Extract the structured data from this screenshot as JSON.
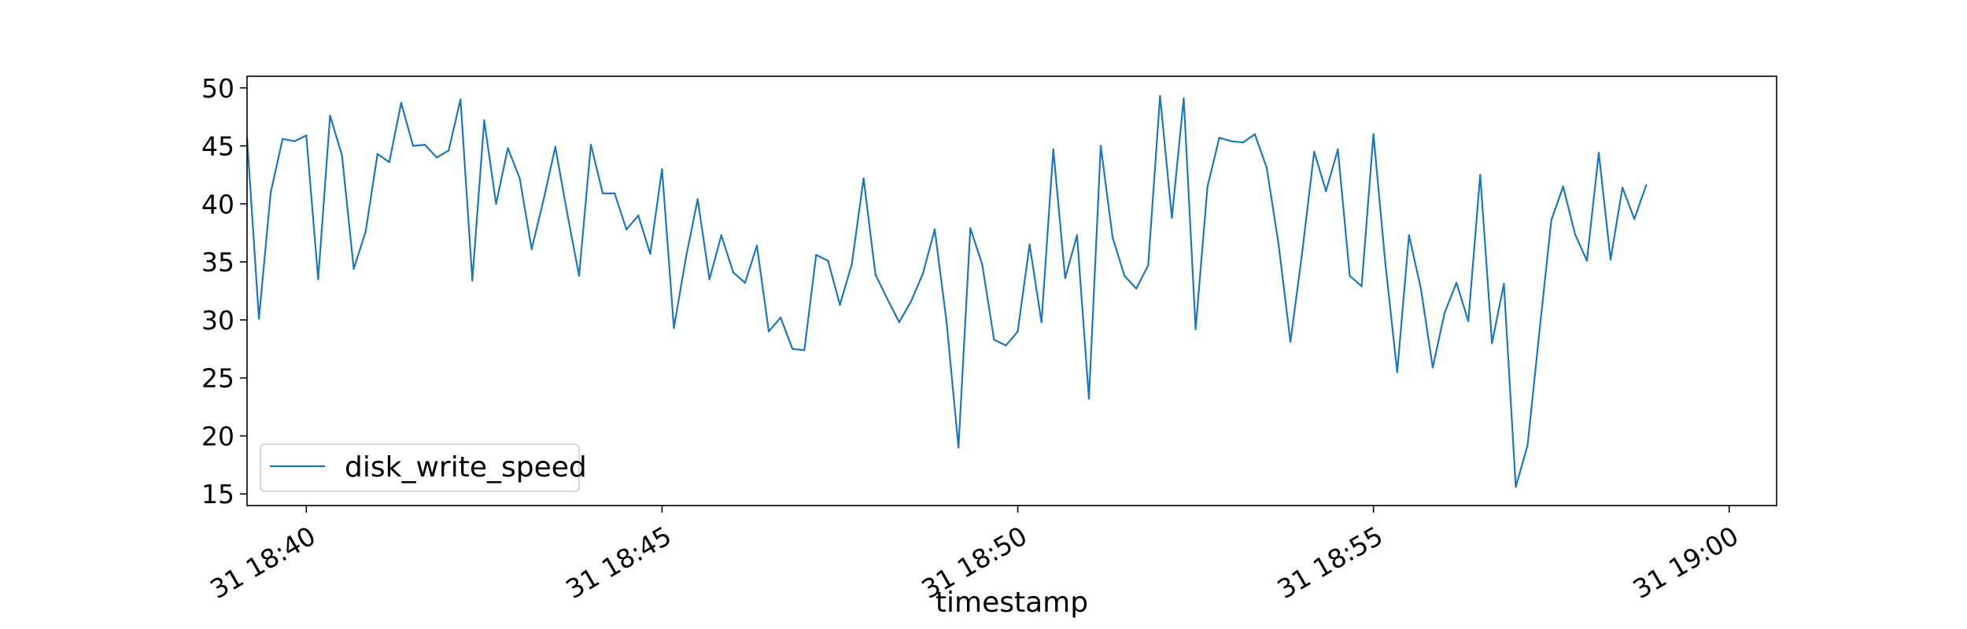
{
  "chart_data": {
    "type": "line",
    "title": "",
    "xlabel": "timestamp",
    "ylabel": "",
    "x_start": "2023-12-31 18:39:10",
    "x_step_seconds": 10,
    "xlim": [
      "2023-12-31 18:39:10",
      "2023-12-31 19:00:40"
    ],
    "ylim": [
      14,
      51
    ],
    "x_ticks": [
      {
        "t": "2023-12-31 18:40:00",
        "label": "31 18:40"
      },
      {
        "t": "2023-12-31 18:45:00",
        "label": "31 18:45"
      },
      {
        "t": "2023-12-31 18:50:00",
        "label": "31 18:50"
      },
      {
        "t": "2023-12-31 18:55:00",
        "label": "31 18:55"
      },
      {
        "t": "2023-12-31 19:00:00",
        "label": "31 19:00"
      }
    ],
    "y_ticks": [
      15,
      20,
      25,
      30,
      35,
      40,
      45,
      50
    ],
    "grid": false,
    "legend_position": "lower-left",
    "series": [
      {
        "name": "disk_write_speed",
        "color": "#1f77b4",
        "values": [
          45.7,
          30.1,
          41.0,
          45.6,
          45.4,
          45.9,
          33.5,
          47.6,
          44.2,
          34.4,
          37.6,
          44.3,
          43.6,
          48.7,
          45.0,
          45.1,
          44.0,
          44.6,
          49.0,
          33.4,
          47.2,
          40.0,
          44.8,
          42.2,
          36.1,
          40.3,
          44.9,
          39.2,
          33.8,
          45.1,
          40.9,
          40.9,
          37.8,
          39.0,
          35.7,
          43.0,
          29.3,
          35.3,
          40.4,
          33.5,
          37.3,
          34.1,
          33.2,
          36.4,
          29.0,
          30.2,
          27.5,
          27.4,
          35.6,
          35.1,
          31.3,
          34.8,
          42.2,
          33.9,
          31.8,
          29.8,
          31.6,
          34.0,
          37.8,
          29.8,
          19.0,
          37.9,
          34.8,
          28.3,
          27.8,
          29.0,
          36.5,
          29.8,
          44.7,
          33.6,
          37.3,
          23.2,
          45.0,
          37.1,
          33.8,
          32.7,
          34.7,
          49.3,
          38.8,
          49.1,
          29.2,
          41.5,
          45.7,
          45.4,
          45.3,
          46.0,
          43.1,
          36.5,
          28.1,
          35.9,
          44.5,
          41.1,
          44.7,
          33.8,
          32.9,
          46.0,
          34.9,
          25.5,
          37.3,
          32.7,
          25.9,
          30.6,
          33.2,
          29.9,
          42.5,
          28.0,
          33.1,
          15.6,
          19.2,
          29.0,
          38.6,
          41.5,
          37.4,
          35.1,
          44.4,
          35.2,
          41.4,
          38.7,
          41.6
        ]
      }
    ]
  }
}
